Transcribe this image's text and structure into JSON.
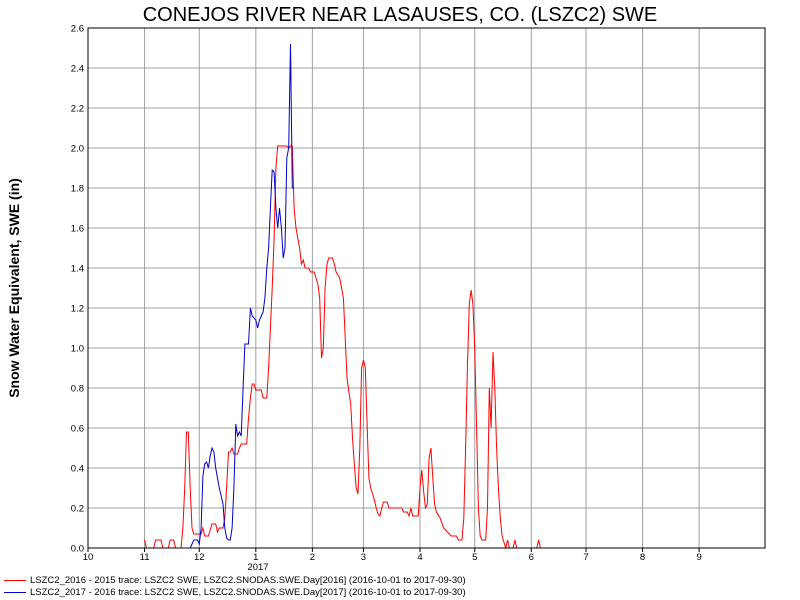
{
  "chart_data": {
    "type": "line",
    "title": "CONEJOS RIVER NEAR LASAUSES, CO. (LSZC2) SWE",
    "ylabel": "Snow Water Equivalent, SWE (in)",
    "xlabel": "",
    "ylim": [
      0,
      2.6
    ],
    "yticks": [
      0.0,
      0.2,
      0.4,
      0.6,
      0.8,
      1.0,
      1.2,
      1.4,
      1.6,
      1.8,
      2.0,
      2.2,
      2.4,
      2.6
    ],
    "x_tick_labels": [
      "10",
      "11",
      "12",
      "1",
      "2",
      "3",
      "4",
      "5",
      "6",
      "7",
      "8",
      "9"
    ],
    "year_label": "2017",
    "grid": true,
    "legend_position": "bottom-left",
    "series": [
      {
        "name": "LSZC2_2016 - 2015 trace: LSZC2 SWE, LSZC2.SNODAS.SWE.Day[2016] (2016-10-01 to 2017-09-30)",
        "color": "#ff0000",
        "points": [
          [
            "2016-11-01",
            0.04
          ],
          [
            "2016-11-02",
            0.0
          ],
          [
            "2016-11-06",
            0.0
          ],
          [
            "2016-11-07",
            0.04
          ],
          [
            "2016-11-10",
            0.04
          ],
          [
            "2016-11-11",
            0.0
          ],
          [
            "2016-11-14",
            0.0
          ],
          [
            "2016-11-15",
            0.04
          ],
          [
            "2016-11-17",
            0.04
          ],
          [
            "2016-11-18",
            0.0
          ],
          [
            "2016-11-21",
            0.0
          ],
          [
            "2016-11-22",
            0.1
          ],
          [
            "2016-11-23",
            0.3
          ],
          [
            "2016-11-24",
            0.58
          ],
          [
            "2016-11-25",
            0.58
          ],
          [
            "2016-11-26",
            0.3
          ],
          [
            "2016-11-27",
            0.1
          ],
          [
            "2016-11-28",
            0.07
          ],
          [
            "2016-12-02",
            0.07
          ],
          [
            "2016-12-03",
            0.1
          ],
          [
            "2016-12-04",
            0.06
          ],
          [
            "2016-12-06",
            0.06
          ],
          [
            "2016-12-07",
            0.09
          ],
          [
            "2016-12-08",
            0.12
          ],
          [
            "2016-12-10",
            0.12
          ],
          [
            "2016-12-11",
            0.08
          ],
          [
            "2016-12-12",
            0.1
          ],
          [
            "2016-12-14",
            0.1
          ],
          [
            "2016-12-15",
            0.15
          ],
          [
            "2016-12-16",
            0.3
          ],
          [
            "2016-12-17",
            0.48
          ],
          [
            "2016-12-18",
            0.48
          ],
          [
            "2016-12-19",
            0.5
          ],
          [
            "2016-12-20",
            0.47
          ],
          [
            "2016-12-22",
            0.47
          ],
          [
            "2016-12-23",
            0.5
          ],
          [
            "2016-12-24",
            0.52
          ],
          [
            "2016-12-27",
            0.52
          ],
          [
            "2016-12-28",
            0.65
          ],
          [
            "2016-12-29",
            0.75
          ],
          [
            "2016-12-30",
            0.82
          ],
          [
            "2016-12-31",
            0.82
          ],
          [
            "2017-01-01",
            0.79
          ],
          [
            "2017-01-04",
            0.79
          ],
          [
            "2017-01-05",
            0.75
          ],
          [
            "2017-01-07",
            0.75
          ],
          [
            "2017-01-08",
            0.9
          ],
          [
            "2017-01-09",
            1.1
          ],
          [
            "2017-01-10",
            1.3
          ],
          [
            "2017-01-11",
            1.55
          ],
          [
            "2017-01-12",
            1.9
          ],
          [
            "2017-01-13",
            2.01
          ],
          [
            "2017-01-18",
            2.01
          ],
          [
            "2017-01-19",
            2.0
          ],
          [
            "2017-01-20",
            2.01
          ],
          [
            "2017-01-21",
            2.01
          ],
          [
            "2017-01-22",
            1.7
          ],
          [
            "2017-01-23",
            1.6
          ],
          [
            "2017-01-24",
            1.55
          ],
          [
            "2017-01-25",
            1.5
          ],
          [
            "2017-01-26",
            1.42
          ],
          [
            "2017-01-27",
            1.44
          ],
          [
            "2017-01-28",
            1.4
          ],
          [
            "2017-01-30",
            1.4
          ],
          [
            "2017-01-31",
            1.38
          ],
          [
            "2017-02-02",
            1.38
          ],
          [
            "2017-02-03",
            1.35
          ],
          [
            "2017-02-04",
            1.32
          ],
          [
            "2017-02-05",
            1.25
          ],
          [
            "2017-02-06",
            0.95
          ],
          [
            "2017-02-07",
            1.0
          ],
          [
            "2017-02-08",
            1.3
          ],
          [
            "2017-02-09",
            1.42
          ],
          [
            "2017-02-10",
            1.45
          ],
          [
            "2017-02-12",
            1.45
          ],
          [
            "2017-02-13",
            1.42
          ],
          [
            "2017-02-14",
            1.38
          ],
          [
            "2017-02-16",
            1.35
          ],
          [
            "2017-02-17",
            1.3
          ],
          [
            "2017-02-18",
            1.25
          ],
          [
            "2017-02-19",
            1.05
          ],
          [
            "2017-02-20",
            0.85
          ],
          [
            "2017-02-21",
            0.78
          ],
          [
            "2017-02-22",
            0.72
          ],
          [
            "2017-02-23",
            0.55
          ],
          [
            "2017-02-24",
            0.42
          ],
          [
            "2017-02-25",
            0.3
          ],
          [
            "2017-02-26",
            0.27
          ],
          [
            "2017-02-27",
            0.5
          ],
          [
            "2017-02-28",
            0.9
          ],
          [
            "2017-03-01",
            0.94
          ],
          [
            "2017-03-02",
            0.9
          ],
          [
            "2017-03-03",
            0.62
          ],
          [
            "2017-03-04",
            0.35
          ],
          [
            "2017-03-05",
            0.3
          ],
          [
            "2017-03-06",
            0.27
          ],
          [
            "2017-03-07",
            0.24
          ],
          [
            "2017-03-08",
            0.2
          ],
          [
            "2017-03-09",
            0.17
          ],
          [
            "2017-03-10",
            0.16
          ],
          [
            "2017-03-11",
            0.2
          ],
          [
            "2017-03-12",
            0.23
          ],
          [
            "2017-03-14",
            0.23
          ],
          [
            "2017-03-15",
            0.2
          ],
          [
            "2017-03-22",
            0.2
          ],
          [
            "2017-03-23",
            0.18
          ],
          [
            "2017-03-25",
            0.18
          ],
          [
            "2017-03-26",
            0.16
          ],
          [
            "2017-03-27",
            0.2
          ],
          [
            "2017-03-28",
            0.16
          ],
          [
            "2017-03-31",
            0.16
          ],
          [
            "2017-04-01",
            0.3
          ],
          [
            "2017-04-02",
            0.39
          ],
          [
            "2017-04-03",
            0.28
          ],
          [
            "2017-04-04",
            0.2
          ],
          [
            "2017-04-05",
            0.22
          ],
          [
            "2017-04-06",
            0.45
          ],
          [
            "2017-04-07",
            0.5
          ],
          [
            "2017-04-08",
            0.35
          ],
          [
            "2017-04-09",
            0.22
          ],
          [
            "2017-04-10",
            0.18
          ],
          [
            "2017-04-12",
            0.15
          ],
          [
            "2017-04-14",
            0.1
          ],
          [
            "2017-04-16",
            0.08
          ],
          [
            "2017-04-18",
            0.06
          ],
          [
            "2017-04-21",
            0.06
          ],
          [
            "2017-04-22",
            0.04
          ],
          [
            "2017-04-24",
            0.04
          ],
          [
            "2017-04-25",
            0.15
          ],
          [
            "2017-04-26",
            0.5
          ],
          [
            "2017-04-27",
            0.9
          ],
          [
            "2017-04-28",
            1.22
          ],
          [
            "2017-04-29",
            1.29
          ],
          [
            "2017-04-30",
            1.22
          ],
          [
            "2017-05-01",
            1.0
          ],
          [
            "2017-05-02",
            0.6
          ],
          [
            "2017-05-03",
            0.2
          ],
          [
            "2017-05-04",
            0.06
          ],
          [
            "2017-05-05",
            0.04
          ],
          [
            "2017-05-07",
            0.04
          ],
          [
            "2017-05-08",
            0.2
          ],
          [
            "2017-05-09",
            0.8
          ],
          [
            "2017-05-10",
            0.6
          ],
          [
            "2017-05-11",
            0.98
          ],
          [
            "2017-05-12",
            0.8
          ],
          [
            "2017-05-13",
            0.5
          ],
          [
            "2017-05-14",
            0.3
          ],
          [
            "2017-05-15",
            0.15
          ],
          [
            "2017-05-16",
            0.06
          ],
          [
            "2017-05-17",
            0.03
          ],
          [
            "2017-05-18",
            0.0
          ],
          [
            "2017-05-19",
            0.04
          ],
          [
            "2017-05-20",
            0.0
          ],
          [
            "2017-05-22",
            0.0
          ],
          [
            "2017-05-23",
            0.04
          ],
          [
            "2017-05-24",
            0.0
          ],
          [
            "2017-06-04",
            0.0
          ],
          [
            "2017-06-05",
            0.04
          ],
          [
            "2017-06-06",
            0.0
          ]
        ]
      },
      {
        "name": "LSZC2_2017 - 2016 trace: LSZC2 SWE, LSZC2.SNODAS.SWE.Day[2017] (2016-10-01 to 2017-09-30)",
        "color": "#0000cc",
        "points": [
          [
            "2016-11-26",
            0.0
          ],
          [
            "2016-11-27",
            0.02
          ],
          [
            "2016-11-28",
            0.04
          ],
          [
            "2016-11-30",
            0.04
          ],
          [
            "2016-12-01",
            0.02
          ],
          [
            "2016-12-02",
            0.1
          ],
          [
            "2016-12-03",
            0.36
          ],
          [
            "2016-12-04",
            0.42
          ],
          [
            "2016-12-05",
            0.43
          ],
          [
            "2016-12-06",
            0.4
          ],
          [
            "2016-12-07",
            0.46
          ],
          [
            "2016-12-08",
            0.5
          ],
          [
            "2016-12-09",
            0.48
          ],
          [
            "2016-12-10",
            0.4
          ],
          [
            "2016-12-11",
            0.35
          ],
          [
            "2016-12-12",
            0.3
          ],
          [
            "2016-12-13",
            0.26
          ],
          [
            "2016-12-14",
            0.22
          ],
          [
            "2016-12-15",
            0.1
          ],
          [
            "2016-12-16",
            0.05
          ],
          [
            "2016-12-17",
            0.04
          ],
          [
            "2016-12-18",
            0.04
          ],
          [
            "2016-12-19",
            0.1
          ],
          [
            "2016-12-20",
            0.3
          ],
          [
            "2016-12-21",
            0.62
          ],
          [
            "2016-12-22",
            0.56
          ],
          [
            "2016-12-23",
            0.58
          ],
          [
            "2016-12-24",
            0.56
          ],
          [
            "2016-12-25",
            0.8
          ],
          [
            "2016-12-26",
            1.02
          ],
          [
            "2016-12-28",
            1.02
          ],
          [
            "2016-12-29",
            1.2
          ],
          [
            "2016-12-30",
            1.16
          ],
          [
            "2016-12-31",
            1.15
          ],
          [
            "2017-01-01",
            1.14
          ],
          [
            "2017-01-02",
            1.1
          ],
          [
            "2017-01-03",
            1.14
          ],
          [
            "2017-01-04",
            1.16
          ],
          [
            "2017-01-05",
            1.18
          ],
          [
            "2017-01-06",
            1.25
          ],
          [
            "2017-01-07",
            1.4
          ],
          [
            "2017-01-08",
            1.5
          ],
          [
            "2017-01-09",
            1.7
          ],
          [
            "2017-01-10",
            1.89
          ],
          [
            "2017-01-11",
            1.88
          ],
          [
            "2017-01-12",
            1.7
          ],
          [
            "2017-01-13",
            1.6
          ],
          [
            "2017-01-14",
            1.7
          ],
          [
            "2017-01-15",
            1.6
          ],
          [
            "2017-01-16",
            1.45
          ],
          [
            "2017-01-17",
            1.5
          ],
          [
            "2017-01-18",
            1.95
          ],
          [
            "2017-01-19",
            2.0
          ],
          [
            "2017-01-20",
            2.52
          ],
          [
            "2017-01-21",
            1.8
          ],
          [
            "2017-01-22",
            1.8
          ]
        ]
      }
    ]
  }
}
